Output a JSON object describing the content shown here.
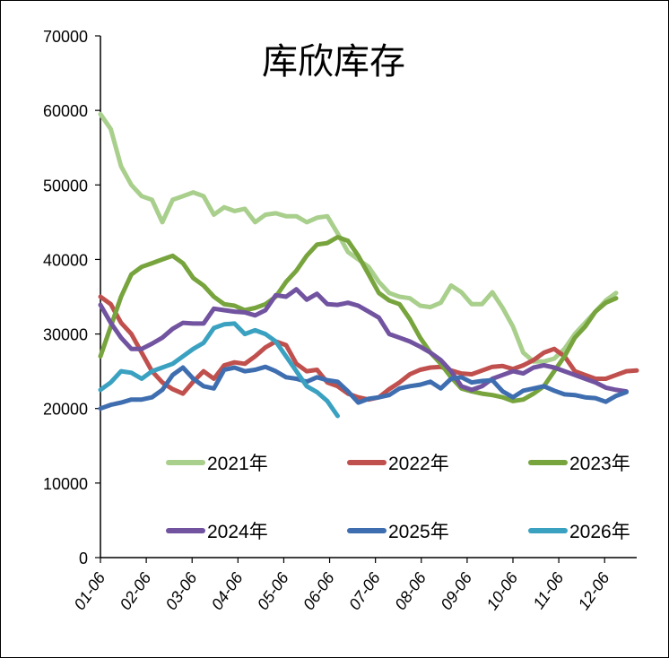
{
  "chart_data": {
    "type": "line",
    "title": "库欣库存",
    "xlabel": "",
    "ylabel": "",
    "ylim": [
      0,
      70000
    ],
    "yticks": [
      0,
      10000,
      20000,
      30000,
      40000,
      50000,
      60000,
      70000
    ],
    "x_tick_labels": [
      "01-06",
      "02-06",
      "03-06",
      "04-06",
      "05-06",
      "06-06",
      "07-06",
      "08-06",
      "09-06",
      "10-06",
      "11-06",
      "12-06"
    ],
    "x_range_weeks": [
      0,
      52
    ],
    "grid": false,
    "legend_position": "bottom, 2 rows of 3",
    "series": [
      {
        "name": "2021年",
        "color": "#a9cf8c",
        "values": [
          59500,
          57500,
          52500,
          50000,
          48500,
          48000,
          45000,
          48000,
          48500,
          49000,
          48500,
          46000,
          47000,
          46500,
          46800,
          45000,
          46000,
          46200,
          45800,
          45800,
          45000,
          45600,
          45800,
          43500,
          41000,
          40000,
          39000,
          37000,
          35500,
          35000,
          34800,
          33800,
          33600,
          34200,
          36500,
          35600,
          34000,
          34000,
          35600,
          33500,
          31000,
          27500,
          26300,
          26300,
          26700,
          28000,
          30000,
          31500,
          33000,
          34500,
          35500
        ]
      },
      {
        "name": "2022年",
        "color": "#c0504d",
        "values": [
          35000,
          34000,
          31500,
          30000,
          27500,
          25000,
          23500,
          22600,
          22000,
          23600,
          25000,
          24000,
          25800,
          26200,
          26000,
          27000,
          28200,
          29000,
          28500,
          26000,
          25000,
          25200,
          23500,
          23000,
          22000,
          21500,
          21200,
          21500,
          22600,
          23500,
          24600,
          25200,
          25500,
          25600,
          25100,
          24700,
          24600,
          25100,
          25600,
          25700,
          25300,
          25800,
          26500,
          27500,
          28000,
          27000,
          25000,
          24500,
          24000,
          24000,
          24500,
          25000,
          25100
        ]
      },
      {
        "name": "2023年",
        "color": "#77a43d",
        "values": [
          27000,
          31000,
          35000,
          38000,
          39000,
          39500,
          40000,
          40500,
          39500,
          37500,
          36500,
          35000,
          34000,
          33800,
          33200,
          33500,
          34000,
          35000,
          37000,
          38500,
          40500,
          42000,
          42200,
          43000,
          42500,
          40500,
          38000,
          35500,
          34500,
          34000,
          32000,
          29500,
          27500,
          26000,
          24200,
          22700,
          22300,
          22000,
          21800,
          21500,
          21000,
          21200,
          22000,
          23000,
          25000,
          27000,
          29500,
          31000,
          33000,
          34200,
          34800
        ]
      },
      {
        "name": "2024年",
        "color": "#7153a0",
        "values": [
          33900,
          31500,
          29500,
          28000,
          28000,
          28700,
          29500,
          30700,
          31500,
          31400,
          31400,
          33400,
          33200,
          33000,
          32900,
          32500,
          33200,
          35200,
          35000,
          36000,
          34600,
          35400,
          34000,
          33900,
          34200,
          33800,
          33000,
          32200,
          30000,
          29500,
          29000,
          28300,
          27500,
          26500,
          25000,
          23000,
          22500,
          23000,
          24000,
          24500,
          25000,
          24700,
          25500,
          25800,
          25500,
          25000,
          24500,
          24000,
          23500,
          22800,
          22500,
          22300
        ]
      },
      {
        "name": "2025年",
        "color": "#3f6eb0",
        "values": [
          20000,
          20500,
          20800,
          21200,
          21200,
          21500,
          22500,
          24500,
          25500,
          24000,
          23000,
          22700,
          25200,
          25500,
          25000,
          25200,
          25600,
          25000,
          24200,
          24000,
          23600,
          24200,
          23800,
          23600,
          22300,
          20800,
          21300,
          21500,
          21800,
          22700,
          23000,
          23200,
          23600,
          22700,
          24000,
          24200,
          23500,
          23700,
          23800,
          22300,
          21500,
          22400,
          22700,
          23000,
          22400,
          21900,
          21800,
          21500,
          21400,
          20900,
          21700,
          22200
        ]
      },
      {
        "name": "2026年",
        "color": "#3aa1c1",
        "values": [
          22500,
          23500,
          25000,
          24800,
          24000,
          25000,
          25500,
          26000,
          27000,
          28000,
          28800,
          30800,
          31300,
          31400,
          30000,
          30500,
          30000,
          29000,
          27000,
          25000,
          23000,
          22200,
          21000,
          19000
        ]
      }
    ]
  }
}
